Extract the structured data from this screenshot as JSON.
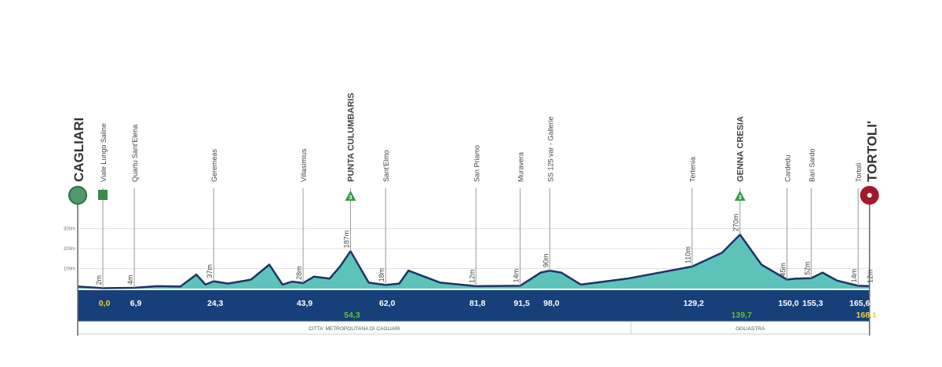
{
  "chart_data": {
    "type": "area",
    "title": "",
    "xlabel": "",
    "ylabel": "",
    "y_ticks": [
      "100m",
      "200m",
      "300m"
    ],
    "ylim": [
      0,
      320
    ],
    "xlim": [
      -5.5,
      168.1
    ],
    "grid": true,
    "start": {
      "name": "CAGLIARI",
      "color": "#4e9a6a"
    },
    "finish": {
      "name": "TORTOLI'",
      "color": "#a3192b"
    },
    "profile": [
      [
        -5.5,
        10
      ],
      [
        0,
        2
      ],
      [
        6.9,
        4
      ],
      [
        11.9,
        12
      ],
      [
        17,
        10
      ],
      [
        20.5,
        70
      ],
      [
        22.5,
        20
      ],
      [
        24.3,
        37
      ],
      [
        27.4,
        25
      ],
      [
        30,
        35
      ],
      [
        32.5,
        45
      ],
      [
        36.5,
        120
      ],
      [
        39.4,
        20
      ],
      [
        41.5,
        35
      ],
      [
        43.9,
        28
      ],
      [
        46.3,
        60
      ],
      [
        49.7,
        50
      ],
      [
        52,
        110
      ],
      [
        54.3,
        187
      ],
      [
        58.3,
        30
      ],
      [
        62.0,
        18
      ],
      [
        65,
        25
      ],
      [
        67,
        90
      ],
      [
        74,
        30
      ],
      [
        81.8,
        12
      ],
      [
        91.5,
        14
      ],
      [
        96,
        80
      ],
      [
        98.0,
        90
      ],
      [
        100.5,
        80
      ],
      [
        104.8,
        20
      ],
      [
        115,
        50
      ],
      [
        129.2,
        110
      ],
      [
        135.8,
        180
      ],
      [
        139.7,
        270
      ],
      [
        144.4,
        120
      ],
      [
        150.0,
        45
      ],
      [
        152,
        50
      ],
      [
        155.3,
        52
      ],
      [
        157.8,
        80
      ],
      [
        161,
        40
      ],
      [
        165.6,
        14
      ],
      [
        168.1,
        12
      ]
    ],
    "waypoints": [
      {
        "name": "Viale Lungo Saline",
        "km": 0.0,
        "km_label": "0,0",
        "elev_label": "2m",
        "kind": "start-km"
      },
      {
        "name": "Quartu Sant'Elena",
        "km": 6.9,
        "km_label": "6,9",
        "elev_label": "4m"
      },
      {
        "name": "Geremeas",
        "km": 24.3,
        "km_label": "24,3",
        "elev_label": "37m"
      },
      {
        "name": "Villasimius",
        "km": 43.9,
        "km_label": "43,9",
        "elev_label": "28m"
      },
      {
        "name": "PUNTA CULUMBARIS",
        "km": 54.3,
        "km_label": "54,3",
        "elev_label": "187m",
        "kind": "gpm",
        "category": "3"
      },
      {
        "name": "Sant'Elmo",
        "km": 62.0,
        "km_label": "62,0",
        "elev_label": "18m"
      },
      {
        "name": "San Priamo",
        "km": 81.8,
        "km_label": "81,8",
        "elev_label": "12m"
      },
      {
        "name": "Muravera",
        "km": 91.5,
        "km_label": "91,5",
        "elev_label": "14m"
      },
      {
        "name": "SS 125 var - Gallerie",
        "km": 98.0,
        "km_label": "98,0",
        "elev_label": "90m"
      },
      {
        "name": "Tertenia",
        "km": 129.2,
        "km_label": "129,2",
        "elev_label": "110m"
      },
      {
        "name": "GENNA CRESIA",
        "km": 139.7,
        "km_label": "139,7",
        "elev_label": "270m",
        "kind": "gpm",
        "category": "3"
      },
      {
        "name": "Cardedu",
        "km": 150.0,
        "km_label": "150,0",
        "elev_label": "45m"
      },
      {
        "name": "Bari Sardo",
        "km": 155.3,
        "km_label": "155,3",
        "elev_label": "52m"
      },
      {
        "name": "Tortolì",
        "km": 165.6,
        "km_label": "165,6",
        "elev_label": "14m"
      },
      {
        "name": "TORTOLI'",
        "km": 168.1,
        "km_label": "168,1",
        "elev_label": "12m",
        "kind": "finish-km"
      }
    ],
    "regions": [
      {
        "name": "CITTA' METROPOLITANA DI CAGLIARI",
        "from_km": -5.5,
        "to_km": 115.8
      },
      {
        "name": "OGLIASTRA",
        "from_km": 115.8,
        "to_km": 168.1
      }
    ],
    "colors": {
      "fill": "#5cc3bb",
      "line": "#1d3466",
      "band": "#173f7a",
      "km_text": "#ffffff",
      "gpm_km": "#5fbf3a",
      "start_finish_km": "#e6d23a"
    }
  }
}
